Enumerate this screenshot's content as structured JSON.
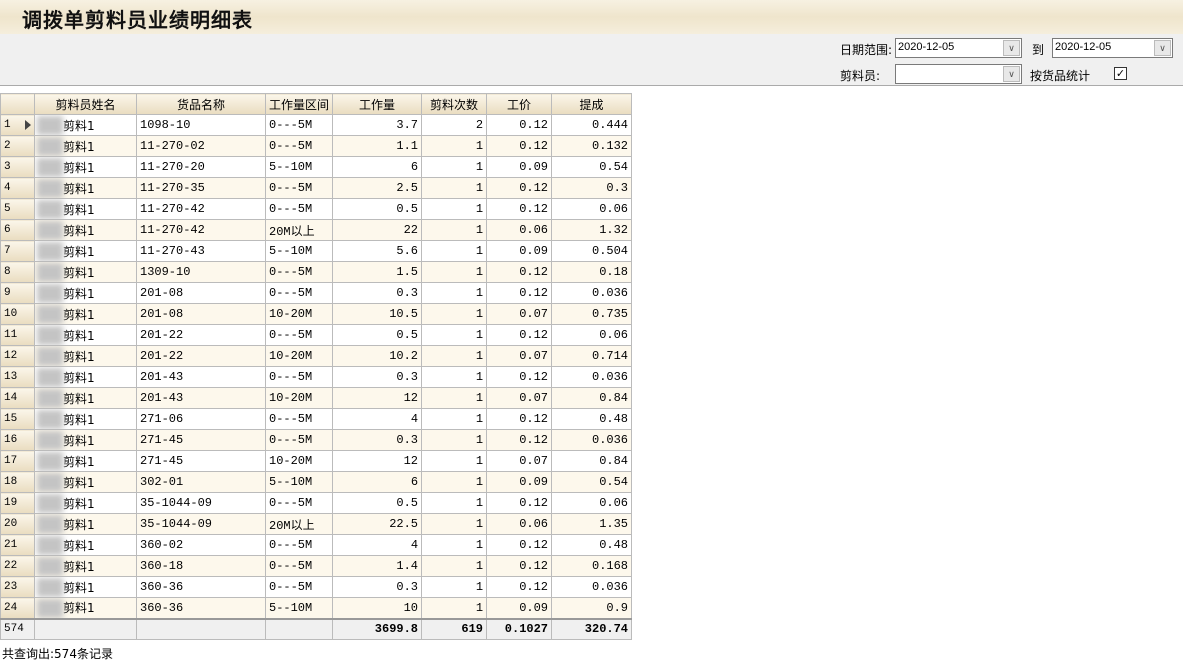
{
  "title": "调拨单剪料员业绩明细表",
  "filters": {
    "date_label": "日期范围:",
    "date_from": "2020-12-05",
    "to_label": "到",
    "date_to": "2020-12-05",
    "cutter_label": "剪料员:",
    "cutter_value": "",
    "by_product_label": "按货品统计",
    "by_product_checked": true
  },
  "columns": [
    "剪料员姓名",
    "货品名称",
    "工作量区间",
    "工作量",
    "剪料次数",
    "工价",
    "提成"
  ],
  "rows": [
    [
      "剪料1",
      "1098-10",
      "0---5M",
      "3.7",
      "2",
      "0.12",
      "0.444"
    ],
    [
      "剪料1",
      "11-270-02",
      "0---5M",
      "1.1",
      "1",
      "0.12",
      "0.132"
    ],
    [
      "剪料1",
      "11-270-20",
      "5--10M",
      "6",
      "1",
      "0.09",
      "0.54"
    ],
    [
      "剪料1",
      "11-270-35",
      "0---5M",
      "2.5",
      "1",
      "0.12",
      "0.3"
    ],
    [
      "剪料1",
      "11-270-42",
      "0---5M",
      "0.5",
      "1",
      "0.12",
      "0.06"
    ],
    [
      "剪料1",
      "11-270-42",
      "20M以上",
      "22",
      "1",
      "0.06",
      "1.32"
    ],
    [
      "剪料1",
      "11-270-43",
      "5--10M",
      "5.6",
      "1",
      "0.09",
      "0.504"
    ],
    [
      "剪料1",
      "1309-10",
      "0---5M",
      "1.5",
      "1",
      "0.12",
      "0.18"
    ],
    [
      "剪料1",
      "201-08",
      "0---5M",
      "0.3",
      "1",
      "0.12",
      "0.036"
    ],
    [
      "剪料1",
      "201-08",
      "10-20M",
      "10.5",
      "1",
      "0.07",
      "0.735"
    ],
    [
      "剪料1",
      "201-22",
      "0---5M",
      "0.5",
      "1",
      "0.12",
      "0.06"
    ],
    [
      "剪料1",
      "201-22",
      "10-20M",
      "10.2",
      "1",
      "0.07",
      "0.714"
    ],
    [
      "剪料1",
      "201-43",
      "0---5M",
      "0.3",
      "1",
      "0.12",
      "0.036"
    ],
    [
      "剪料1",
      "201-43",
      "10-20M",
      "12",
      "1",
      "0.07",
      "0.84"
    ],
    [
      "剪料1",
      "271-06",
      "0---5M",
      "4",
      "1",
      "0.12",
      "0.48"
    ],
    [
      "剪料1",
      "271-45",
      "0---5M",
      "0.3",
      "1",
      "0.12",
      "0.036"
    ],
    [
      "剪料1",
      "271-45",
      "10-20M",
      "12",
      "1",
      "0.07",
      "0.84"
    ],
    [
      "剪料1",
      "302-01",
      "5--10M",
      "6",
      "1",
      "0.09",
      "0.54"
    ],
    [
      "剪料1",
      "35-1044-09",
      "0---5M",
      "0.5",
      "1",
      "0.12",
      "0.06"
    ],
    [
      "剪料1",
      "35-1044-09",
      "20M以上",
      "22.5",
      "1",
      "0.06",
      "1.35"
    ],
    [
      "剪料1",
      "360-02",
      "0---5M",
      "4",
      "1",
      "0.12",
      "0.48"
    ],
    [
      "剪料1",
      "360-18",
      "0---5M",
      "1.4",
      "1",
      "0.12",
      "0.168"
    ],
    [
      "剪料1",
      "360-36",
      "0---5M",
      "0.3",
      "1",
      "0.12",
      "0.036"
    ],
    [
      "剪料1",
      "360-36",
      "5--10M",
      "10",
      "1",
      "0.09",
      "0.9"
    ]
  ],
  "totals": {
    "count": "574",
    "qty": "3699.8",
    "times": "619",
    "price": "0.1027",
    "commission": "320.74"
  },
  "status": "共查询出:574条记录"
}
